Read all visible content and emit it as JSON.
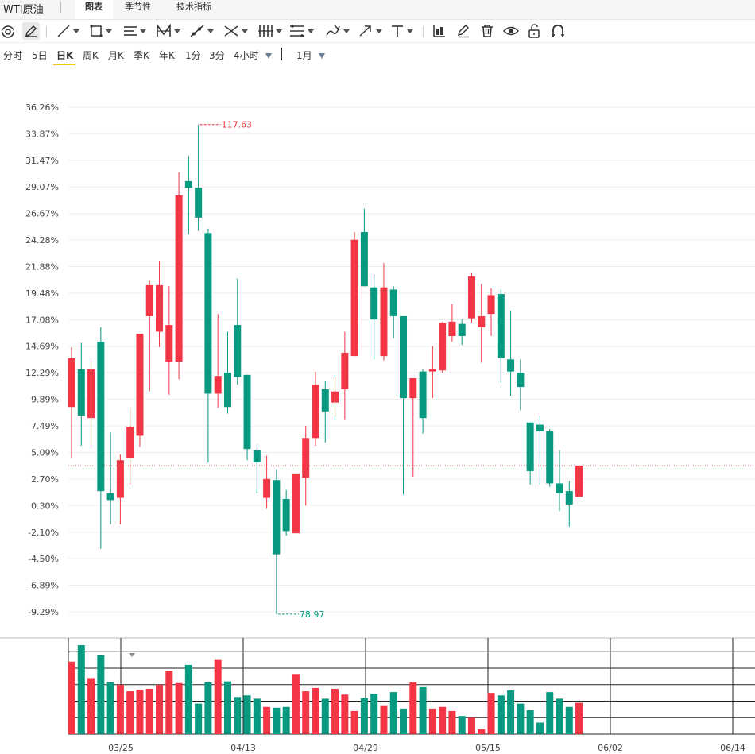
{
  "header": {
    "title": "WTI原油",
    "tabs": [
      {
        "label": "图表",
        "active": true
      },
      {
        "label": "季节性",
        "active": false
      },
      {
        "label": "技术指标",
        "active": false
      }
    ]
  },
  "toolbar": {
    "tools": [
      {
        "name": "magnet-tool-icon"
      },
      {
        "name": "pencil-tool-icon"
      },
      {
        "name": "line-tool-icon"
      },
      {
        "name": "rectangle-tool-icon"
      },
      {
        "name": "channel-tool-icon"
      },
      {
        "name": "pattern-tool-icon"
      },
      {
        "name": "ray-tool-icon"
      },
      {
        "name": "fork-tool-icon"
      },
      {
        "name": "bars-tool-icon"
      },
      {
        "name": "fib-tool-icon"
      },
      {
        "name": "brush-tool-icon"
      },
      {
        "name": "arrow-tool-icon"
      },
      {
        "name": "text-tool-icon"
      },
      {
        "name": "indicator-icon"
      },
      {
        "name": "edit-icon"
      },
      {
        "name": "trash-icon"
      },
      {
        "name": "eye-icon"
      },
      {
        "name": "lock-icon"
      },
      {
        "name": "magnet-icon"
      }
    ]
  },
  "periods": {
    "items": [
      "分时",
      "5日",
      "日K",
      "周K",
      "月K",
      "季K",
      "年K",
      "1分",
      "3分",
      "4小时"
    ],
    "active": "日K",
    "range_label": "1月"
  },
  "colors": {
    "up": "#f23645",
    "down": "#089981",
    "grid": "#eeeeee",
    "axis": "#333333"
  },
  "chart_data": {
    "type": "candlestick",
    "y_ticks": [
      "36.26%",
      "33.87%",
      "31.47%",
      "29.07%",
      "26.67%",
      "24.28%",
      "21.88%",
      "19.48%",
      "17.08%",
      "14.69%",
      "12.29%",
      "9.89%",
      "7.49%",
      "5.09%",
      "2.70%",
      "0.30%",
      "-2.10%",
      "-4.50%",
      "-6.89%",
      "-9.29%"
    ],
    "y_tick_values": [
      36.26,
      33.87,
      31.47,
      29.07,
      26.67,
      24.28,
      21.88,
      19.48,
      17.08,
      14.69,
      12.29,
      9.89,
      7.49,
      5.09,
      2.7,
      0.3,
      -2.1,
      -4.5,
      -6.89,
      -9.29
    ],
    "x_ticks": [
      "03/25",
      "04/13",
      "04/29",
      "05/15",
      "06/02",
      "06/14"
    ],
    "high_label": "117.63",
    "low_label": "78.97",
    "candles": [
      {
        "o": 9.2,
        "c": 13.6,
        "h": 14.6,
        "l": 4.6
      },
      {
        "o": 12.6,
        "c": 8.4,
        "h": 15.0,
        "l": 5.7
      },
      {
        "o": 8.2,
        "c": 12.6,
        "h": 13.4,
        "l": 5.6
      },
      {
        "o": 15.1,
        "c": 1.6,
        "h": 16.4,
        "l": -3.6
      },
      {
        "o": 1.4,
        "c": 0.8,
        "h": 6.9,
        "l": -1.4
      },
      {
        "o": 1.0,
        "c": 4.4,
        "h": 4.9,
        "l": -1.4
      },
      {
        "o": 4.6,
        "c": 7.4,
        "h": 9.2,
        "l": 2.2
      },
      {
        "o": 6.6,
        "c": 15.8,
        "h": 15.8,
        "l": 5.6
      },
      {
        "o": 17.4,
        "c": 20.2,
        "h": 20.6,
        "l": 10.6
      },
      {
        "o": 16.0,
        "c": 20.2,
        "h": 22.4,
        "l": 14.6
      },
      {
        "o": 13.3,
        "c": 16.6,
        "h": 20.1,
        "l": 10.3
      },
      {
        "o": 13.3,
        "c": 28.3,
        "h": 30.4,
        "l": 11.7
      },
      {
        "o": 29.6,
        "c": 29.0,
        "h": 31.9,
        "l": 24.8
      },
      {
        "o": 29.0,
        "c": 26.3,
        "h": 34.7,
        "l": 25.1
      },
      {
        "o": 24.9,
        "c": 10.4,
        "h": 25.3,
        "l": 4.2
      },
      {
        "o": 10.4,
        "c": 12.0,
        "h": 17.6,
        "l": 9.1
      },
      {
        "o": 12.3,
        "c": 9.2,
        "h": 16.0,
        "l": 8.6
      },
      {
        "o": 16.6,
        "c": 11.9,
        "h": 20.8,
        "l": 11.2
      },
      {
        "o": 12.1,
        "c": 5.4,
        "h": 12.1,
        "l": 4.4
      },
      {
        "o": 5.3,
        "c": 4.2,
        "h": 5.8,
        "l": 1.4
      },
      {
        "o": 1.0,
        "c": 2.7,
        "h": 4.8,
        "l": 0.0
      },
      {
        "o": 2.6,
        "c": -4.1,
        "h": 3.6,
        "l": -9.5
      },
      {
        "o": 0.9,
        "c": -2.0,
        "h": 1.7,
        "l": -2.4
      },
      {
        "o": -2.2,
        "c": 3.2,
        "h": 3.2,
        "l": -2.2
      },
      {
        "o": 2.8,
        "c": 6.4,
        "h": 7.5,
        "l": 0.3
      },
      {
        "o": 6.4,
        "c": 11.2,
        "h": 12.4,
        "l": 5.7
      },
      {
        "o": 10.8,
        "c": 8.8,
        "h": 11.5,
        "l": 6.0
      },
      {
        "o": 9.6,
        "c": 10.6,
        "h": 11.9,
        "l": 8.3
      },
      {
        "o": 10.8,
        "c": 14.1,
        "h": 16.0,
        "l": 8.1
      },
      {
        "o": 13.8,
        "c": 24.3,
        "h": 25.0,
        "l": 13.8
      },
      {
        "o": 25.0,
        "c": 20.1,
        "h": 27.1,
        "l": 20.1
      },
      {
        "o": 20.0,
        "c": 17.1,
        "h": 21.2,
        "l": 13.5
      },
      {
        "o": 13.8,
        "c": 20.0,
        "h": 22.2,
        "l": 13.4
      },
      {
        "o": 19.8,
        "c": 17.4,
        "h": 20.1,
        "l": 15.4
      },
      {
        "o": 17.4,
        "c": 10.0,
        "h": 17.4,
        "l": 1.3
      },
      {
        "o": 10.0,
        "c": 11.8,
        "h": 11.8,
        "l": 2.9
      },
      {
        "o": 12.4,
        "c": 8.2,
        "h": 12.6,
        "l": 6.8
      },
      {
        "o": 12.4,
        "c": 12.6,
        "h": 14.7,
        "l": 10.0
      },
      {
        "o": 12.5,
        "c": 16.8,
        "h": 16.9,
        "l": 12.3
      },
      {
        "o": 15.6,
        "c": 16.9,
        "h": 18.5,
        "l": 15.1
      },
      {
        "o": 16.7,
        "c": 15.6,
        "h": 17.1,
        "l": 14.8
      },
      {
        "o": 17.2,
        "c": 21.0,
        "h": 21.3,
        "l": 16.8
      },
      {
        "o": 16.4,
        "c": 17.4,
        "h": 20.3,
        "l": 13.2
      },
      {
        "o": 17.6,
        "c": 19.3,
        "h": 19.9,
        "l": 15.6
      },
      {
        "o": 19.4,
        "c": 13.6,
        "h": 19.8,
        "l": 11.4
      },
      {
        "o": 13.5,
        "c": 12.4,
        "h": 17.9,
        "l": 10.2
      },
      {
        "o": 12.3,
        "c": 11.0,
        "h": 13.5,
        "l": 8.9
      },
      {
        "o": 7.8,
        "c": 3.4,
        "h": 7.8,
        "l": 2.2
      },
      {
        "o": 7.6,
        "c": 7.0,
        "h": 8.4,
        "l": 2.2
      },
      {
        "o": 7.0,
        "c": 2.3,
        "h": 7.2,
        "l": 2.0
      },
      {
        "o": 2.3,
        "c": 1.4,
        "h": 5.3,
        "l": -0.2
      },
      {
        "o": 1.6,
        "c": 0.4,
        "h": 2.5,
        "l": -1.6
      },
      {
        "o": 1.1,
        "c": 3.9,
        "h": 4.0,
        "l": 1.1
      }
    ],
    "volumes": [
      8.8,
      10.8,
      6.8,
      9.6,
      6.3,
      6.0,
      5.2,
      5.4,
      5.5,
      6.0,
      7.7,
      6.2,
      8.4,
      3.7,
      6.3,
      9.0,
      6.4,
      4.5,
      4.7,
      4.3,
      3.3,
      3.2,
      3.3,
      7.3,
      5.2,
      5.6,
      4.3,
      5.5,
      4.8,
      2.8,
      4.4,
      4.9,
      3.5,
      5.1,
      3.1,
      6.3,
      5.7,
      3.1,
      3.3,
      2.8,
      2.2,
      2.0,
      0.6,
      5.0,
      4.7,
      5.3,
      3.7,
      2.9,
      1.4,
      5.1,
      4.3,
      3.3,
      3.8
    ],
    "current_line_value": 3.9
  }
}
